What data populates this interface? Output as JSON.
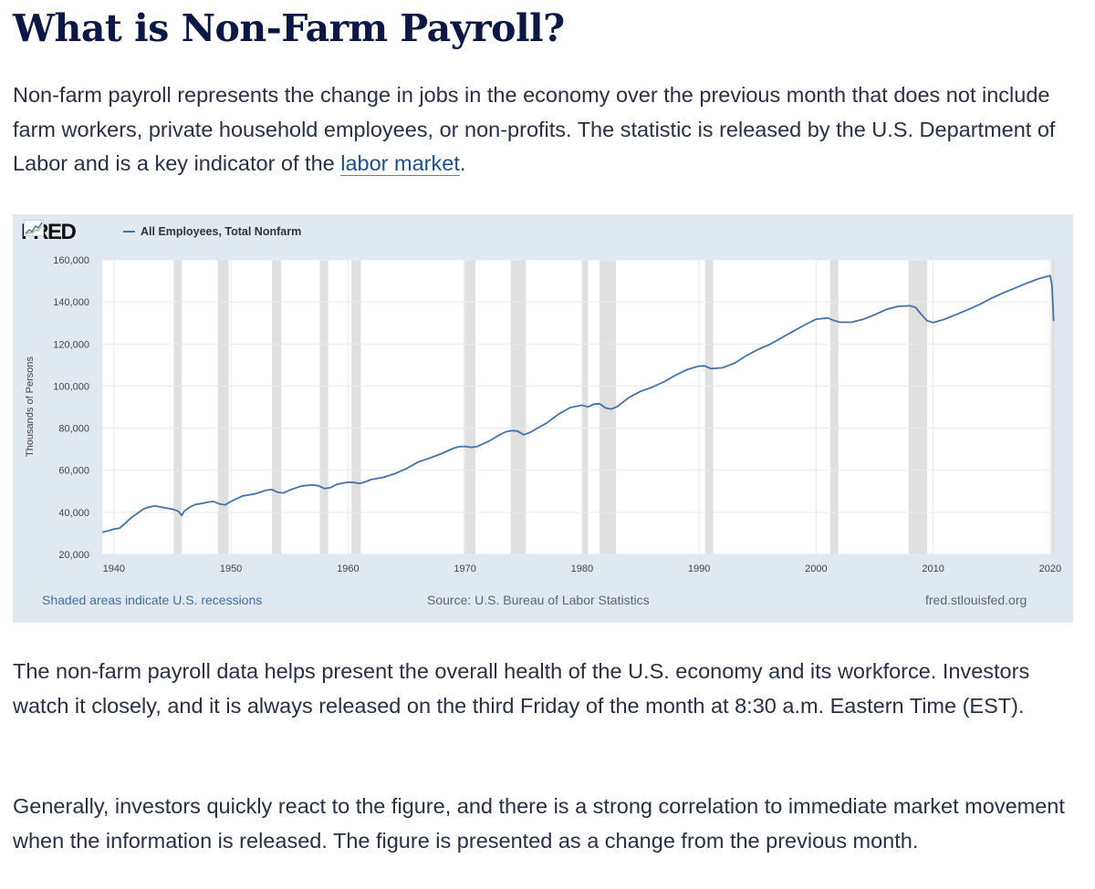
{
  "article": {
    "title": "What is Non-Farm Payroll?",
    "p1_before": "Non-farm payroll represents the change in jobs in the economy over the previous month that does not include farm workers, private household employees, or non-profits. The statistic is released by the U.S. Department of Labor and is a key indicator of the ",
    "p1_link": "labor market",
    "p1_after": ".",
    "p2": "The non-farm payroll data helps present the overall health of the U.S. economy and its workforce. Investors watch it closely, and it is always released on the third Friday of the month at 8:30 a.m. Eastern Time (EST).",
    "p3": "Generally, investors quickly react to the figure, and there is a strong correlation to immediate market movement when the information is released. The figure is presented as a change from the previous month."
  },
  "chart": {
    "logo": "FRED",
    "footer_left": "Shaded areas indicate U.S. recessions",
    "footer_mid": "Source: U.S. Bureau of Labor Statistics",
    "footer_right": "fred.stlouisfed.org",
    "colors": {
      "line": "#4572a7",
      "recession": "#e0e0e0",
      "background": "#e1e9f0",
      "plot": "#ffffff"
    }
  },
  "chart_data": {
    "type": "line",
    "title": "",
    "xlabel": "",
    "ylabel": "Thousands of Persons",
    "legend": "top-left",
    "grid": true,
    "xlim": [
      1939,
      2020.4
    ],
    "ylim": [
      20000,
      160000
    ],
    "x_ticks": [
      1940,
      1950,
      1960,
      1970,
      1980,
      1990,
      2000,
      2010,
      2020
    ],
    "y_ticks": [
      20000,
      40000,
      60000,
      80000,
      100000,
      120000,
      140000,
      160000
    ],
    "y_tick_labels": [
      "20,000",
      "40,000",
      "60,000",
      "80,000",
      "100,000",
      "120,000",
      "140,000",
      "160,000"
    ],
    "recessions": [
      [
        1945.1,
        1945.8
      ],
      [
        1948.9,
        1949.8
      ],
      [
        1953.5,
        1954.3
      ],
      [
        1957.6,
        1958.3
      ],
      [
        1960.3,
        1961.1
      ],
      [
        1969.9,
        1970.9
      ],
      [
        1973.9,
        1975.2
      ],
      [
        1980.0,
        1980.5
      ],
      [
        1981.5,
        1982.9
      ],
      [
        1990.5,
        1991.2
      ],
      [
        2001.2,
        2001.9
      ],
      [
        2007.9,
        2009.5
      ],
      [
        2020.1,
        2020.4
      ]
    ],
    "series": [
      {
        "name": "All Employees, Total Nonfarm",
        "x": [
          1939,
          1939.5,
          1940,
          1940.5,
          1941,
          1941.5,
          1942,
          1942.5,
          1943,
          1943.5,
          1944,
          1944.5,
          1945,
          1945.5,
          1945.8,
          1946,
          1946.5,
          1947,
          1947.5,
          1948,
          1948.5,
          1949,
          1949.5,
          1950,
          1950.5,
          1951,
          1951.5,
          1952,
          1952.5,
          1953,
          1953.5,
          1954,
          1954.5,
          1955,
          1955.5,
          1956,
          1956.5,
          1957,
          1957.5,
          1958,
          1958.5,
          1959,
          1959.5,
          1960,
          1960.5,
          1961,
          1961.5,
          1962,
          1963,
          1964,
          1965,
          1966,
          1967,
          1968,
          1969,
          1969.5,
          1970,
          1970.5,
          1971,
          1972,
          1973,
          1973.5,
          1974,
          1974.5,
          1975,
          1975.5,
          1976,
          1977,
          1978,
          1979,
          1980,
          1980.5,
          1981,
          1981.5,
          1982,
          1982.5,
          1983,
          1984,
          1985,
          1986,
          1987,
          1988,
          1989,
          1990,
          1990.5,
          1991,
          1992,
          1993,
          1994,
          1995,
          1996,
          1997,
          1998,
          1999,
          2000,
          2001,
          2001.5,
          2002,
          2003,
          2004,
          2005,
          2006,
          2007,
          2008,
          2008.5,
          2009,
          2009.5,
          2010,
          2011,
          2012,
          2013,
          2014,
          2015,
          2016,
          2017,
          2018,
          2019,
          2020,
          2020.15,
          2020.3
        ],
        "values": [
          30500,
          31200,
          32000,
          32500,
          35000,
          37500,
          39500,
          41500,
          42500,
          43000,
          42500,
          42000,
          41500,
          40500,
          38500,
          40500,
          42500,
          43800,
          44200,
          44800,
          45200,
          44000,
          43500,
          45200,
          46500,
          47800,
          48200,
          48700,
          49500,
          50500,
          50800,
          49500,
          49200,
          50500,
          51500,
          52400,
          52800,
          53000,
          52600,
          51300,
          51700,
          53200,
          53800,
          54300,
          54200,
          53700,
          54500,
          55600,
          56600,
          58300,
          60800,
          63900,
          65800,
          67900,
          70400,
          71200,
          71300,
          70900,
          71200,
          73700,
          76900,
          78300,
          78800,
          78600,
          76900,
          77800,
          79400,
          82500,
          86700,
          89800,
          90900,
          90100,
          91400,
          91600,
          89600,
          89100,
          90200,
          94500,
          97500,
          99500,
          102000,
          105200,
          107900,
          109500,
          109600,
          108300,
          108700,
          110800,
          114300,
          117300,
          119700,
          122800,
          125900,
          129000,
          131800,
          132400,
          131200,
          130400,
          130300,
          131700,
          133900,
          136400,
          137900,
          138200,
          137400,
          134000,
          131000,
          130200,
          131800,
          134100,
          136400,
          138900,
          141800,
          144300,
          146600,
          148900,
          151000,
          152500,
          148000,
          131000
        ]
      }
    ]
  }
}
